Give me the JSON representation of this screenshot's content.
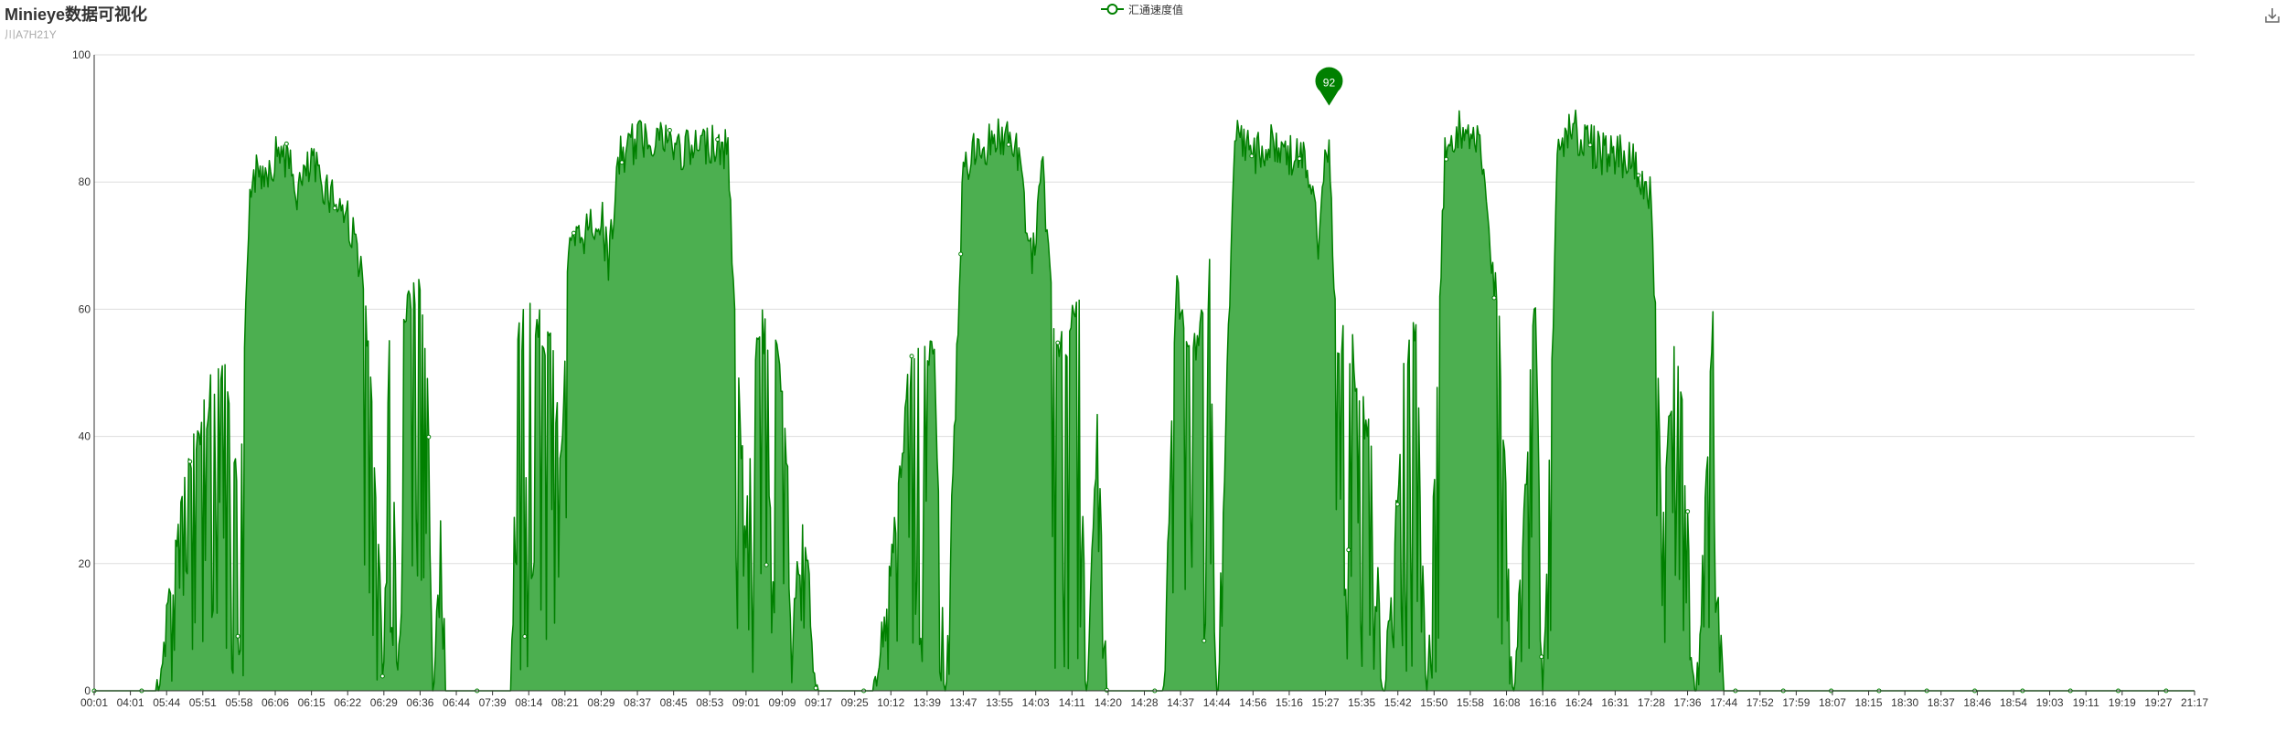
{
  "header": {
    "title": "Minieye数据可视化",
    "subtitle": "川A7H21Y"
  },
  "toolbar": {
    "download_icon": "download-icon"
  },
  "colors": {
    "series": "#008000",
    "area": "#4caf50",
    "grid": "#dddddd",
    "axis": "#333333"
  },
  "chart_data": {
    "type": "area",
    "title": "Minieye数据可视化",
    "subtitle": "川A7H21Y",
    "xlabel": "",
    "ylabel": "",
    "ylim": [
      0,
      100
    ],
    "yticks": [
      0,
      20,
      40,
      60,
      80,
      100
    ],
    "grid": true,
    "legend": "top-center",
    "x_tick_labels": [
      "00:01",
      "04:01",
      "05:44",
      "05:51",
      "05:58",
      "06:06",
      "06:15",
      "06:22",
      "06:29",
      "06:36",
      "06:44",
      "07:39",
      "08:14",
      "08:21",
      "08:29",
      "08:37",
      "08:45",
      "08:53",
      "09:01",
      "09:09",
      "09:17",
      "09:25",
      "10:12",
      "13:39",
      "13:47",
      "13:55",
      "14:03",
      "14:11",
      "14:20",
      "14:28",
      "14:37",
      "14:44",
      "14:56",
      "15:16",
      "15:27",
      "15:35",
      "15:42",
      "15:50",
      "15:58",
      "16:08",
      "16:16",
      "16:24",
      "16:31",
      "17:28",
      "17:36",
      "17:44",
      "17:52",
      "17:59",
      "18:07",
      "18:15",
      "18:30",
      "18:37",
      "18:46",
      "18:54",
      "19:03",
      "19:11",
      "19:19",
      "19:27",
      "21:17"
    ],
    "series": [
      {
        "name": "汇通速度值",
        "envelope": [
          [
            0,
            0
          ],
          [
            1.7,
            0
          ],
          [
            2,
            14
          ],
          [
            2.5,
            36
          ],
          [
            3,
            46
          ],
          [
            3.5,
            55
          ],
          [
            3.8,
            50
          ],
          [
            4,
            25
          ],
          [
            4.3,
            84
          ],
          [
            4.8,
            86
          ],
          [
            5.2,
            89
          ],
          [
            5.6,
            82
          ],
          [
            6,
            86
          ],
          [
            6.5,
            82
          ],
          [
            7,
            78
          ],
          [
            7.3,
            72
          ],
          [
            7.5,
            62
          ],
          [
            7.7,
            43
          ],
          [
            7.85,
            30
          ],
          [
            8,
            5
          ],
          [
            8.15,
            60
          ],
          [
            8.35,
            20
          ],
          [
            8.55,
            62
          ],
          [
            8.75,
            66
          ],
          [
            9,
            65
          ],
          [
            9.2,
            54
          ],
          [
            9.35,
            0
          ],
          [
            9.6,
            36
          ],
          [
            9.7,
            0
          ],
          [
            10,
            0
          ],
          [
            11.5,
            0
          ],
          [
            11.7,
            58
          ],
          [
            12,
            62
          ],
          [
            12.3,
            60
          ],
          [
            12.6,
            58
          ],
          [
            12.9,
            40
          ],
          [
            13.1,
            72
          ],
          [
            13.6,
            76
          ],
          [
            14,
            78
          ],
          [
            14.2,
            71
          ],
          [
            14.5,
            87
          ],
          [
            15,
            90
          ],
          [
            15.5,
            91
          ],
          [
            16,
            89
          ],
          [
            16.5,
            88
          ],
          [
            17,
            90
          ],
          [
            17.5,
            88
          ],
          [
            17.8,
            50
          ],
          [
            18,
            28
          ],
          [
            18.3,
            62
          ],
          [
            18.6,
            58
          ],
          [
            19,
            53
          ],
          [
            19.3,
            18
          ],
          [
            19.6,
            29
          ],
          [
            20,
            0
          ],
          [
            21.5,
            0
          ],
          [
            22.1,
            28
          ],
          [
            22.5,
            52
          ],
          [
            22.9,
            58
          ],
          [
            23.2,
            56
          ],
          [
            23.5,
            0
          ],
          [
            24,
            86
          ],
          [
            24.5,
            89
          ],
          [
            25,
            91
          ],
          [
            25.5,
            88
          ],
          [
            25.9,
            71
          ],
          [
            26.2,
            85
          ],
          [
            26.5,
            60
          ],
          [
            26.9,
            58
          ],
          [
            27.2,
            65
          ],
          [
            27.4,
            0
          ],
          [
            27.7,
            46
          ],
          [
            28,
            0
          ],
          [
            29,
            0
          ],
          [
            29.5,
            0
          ],
          [
            29.9,
            68
          ],
          [
            30.2,
            56
          ],
          [
            30.5,
            58
          ],
          [
            30.8,
            68
          ],
          [
            31,
            0
          ],
          [
            31.5,
            90
          ],
          [
            32,
            88
          ],
          [
            32.5,
            89
          ],
          [
            33,
            88
          ],
          [
            33.5,
            86
          ],
          [
            33.8,
            74
          ],
          [
            34.1,
            92
          ],
          [
            34.3,
            58
          ],
          [
            34.6,
            60
          ],
          [
            34.9,
            52
          ],
          [
            35.3,
            40
          ],
          [
            35.6,
            0
          ],
          [
            36.2,
            55
          ],
          [
            36.5,
            60
          ],
          [
            36.8,
            0
          ],
          [
            37.3,
            89
          ],
          [
            37.8,
            92
          ],
          [
            38.3,
            88
          ],
          [
            38.8,
            60
          ],
          [
            39.2,
            0
          ],
          [
            39.8,
            66
          ],
          [
            40,
            0
          ],
          [
            40.4,
            88
          ],
          [
            40.8,
            92
          ],
          [
            41.2,
            90
          ],
          [
            41.6,
            88
          ],
          [
            42.1,
            88
          ],
          [
            42.5,
            86
          ],
          [
            43,
            82
          ],
          [
            43.3,
            30
          ],
          [
            43.7,
            62
          ],
          [
            44,
            30
          ],
          [
            44.2,
            0
          ],
          [
            44.7,
            61
          ],
          [
            45,
            0
          ],
          [
            47,
            0
          ],
          [
            48,
            0
          ],
          [
            58,
            0
          ]
        ],
        "peak_label": {
          "x": 34.1,
          "value": 92
        }
      }
    ]
  }
}
